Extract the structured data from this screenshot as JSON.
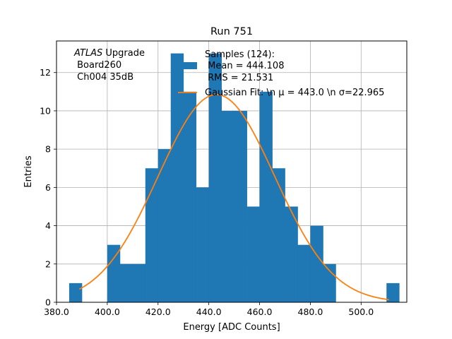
{
  "chart_data": {
    "type": "histogram",
    "title": "Run 751",
    "xlabel": "Energy [ADC Counts]",
    "ylabel": "Entries",
    "xlim": [
      380,
      518
    ],
    "ylim": [
      0,
      13.65
    ],
    "xticks": [
      380,
      400,
      420,
      440,
      460,
      480,
      500
    ],
    "xtick_labels": [
      "380.0",
      "400.0",
      "420.0",
      "440.0",
      "460.0",
      "480.0",
      "500.0"
    ],
    "yticks": [
      0,
      2,
      4,
      6,
      8,
      10,
      12
    ],
    "ytick_labels": [
      "0",
      "2",
      "4",
      "6",
      "8",
      "10",
      "12"
    ],
    "grid": true,
    "bar_color": "#1f77b4",
    "fit_color": "#ff7f0e",
    "bins": [
      {
        "x0": 385,
        "x1": 390,
        "count": 1
      },
      {
        "x0": 390,
        "x1": 395,
        "count": 0
      },
      {
        "x0": 395,
        "x1": 400,
        "count": 0
      },
      {
        "x0": 400,
        "x1": 405,
        "count": 3
      },
      {
        "x0": 405,
        "x1": 410,
        "count": 2
      },
      {
        "x0": 410,
        "x1": 415,
        "count": 2
      },
      {
        "x0": 415,
        "x1": 420,
        "count": 7
      },
      {
        "x0": 420,
        "x1": 425,
        "count": 8
      },
      {
        "x0": 425,
        "x1": 430,
        "count": 13
      },
      {
        "x0": 430,
        "x1": 435,
        "count": 11
      },
      {
        "x0": 435,
        "x1": 440,
        "count": 6
      },
      {
        "x0": 440,
        "x1": 445,
        "count": 13
      },
      {
        "x0": 445,
        "x1": 450,
        "count": 10
      },
      {
        "x0": 450,
        "x1": 455,
        "count": 10
      },
      {
        "x0": 455,
        "x1": 460,
        "count": 5
      },
      {
        "x0": 460,
        "x1": 465,
        "count": 11
      },
      {
        "x0": 465,
        "x1": 470,
        "count": 7
      },
      {
        "x0": 470,
        "x1": 475,
        "count": 5
      },
      {
        "x0": 475,
        "x1": 480,
        "count": 3
      },
      {
        "x0": 480,
        "x1": 485,
        "count": 4
      },
      {
        "x0": 485,
        "x1": 490,
        "count": 2
      },
      {
        "x0": 490,
        "x1": 495,
        "count": 0
      },
      {
        "x0": 495,
        "x1": 500,
        "count": 0
      },
      {
        "x0": 500,
        "x1": 505,
        "count": 0
      },
      {
        "x0": 505,
        "x1": 510,
        "count": 0
      },
      {
        "x0": 510,
        "x1": 515,
        "count": 1
      }
    ],
    "gaussian_fit": {
      "mu": 443.0,
      "sigma": 22.965,
      "amplitude": 10.85,
      "x_range": [
        389,
        511
      ]
    },
    "annotation": {
      "line1_italic": "ATLAS",
      "line1_rest": " Upgrade",
      "line2": " Board260",
      "line3": " Ch004 35dB"
    },
    "legend": {
      "samples_label": "Samples (124):",
      "samples_mean": " Mean = 444.108",
      "samples_rms": " RMS = 21.531",
      "fit_label": "Gaussian Fit: \\n μ = 443.0 \\n σ=22.965"
    }
  }
}
